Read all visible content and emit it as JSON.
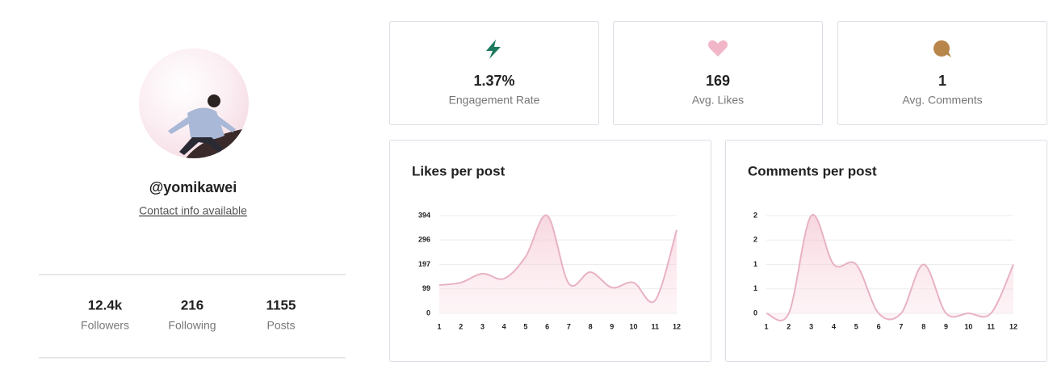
{
  "profile": {
    "username": "@yomikawei",
    "contact": "Contact info available",
    "stats": [
      {
        "value": "12.4k",
        "label": "Followers"
      },
      {
        "value": "216",
        "label": "Following"
      },
      {
        "value": "1155",
        "label": "Posts"
      }
    ]
  },
  "cards": [
    {
      "value": "1.37%",
      "label": "Engagement Rate"
    },
    {
      "value": "169",
      "label": "Avg. Likes"
    },
    {
      "value": "1",
      "label": "Avg. Comments"
    }
  ],
  "chart_data": [
    {
      "type": "line",
      "title": "Likes per post",
      "color": "#e8b2c3",
      "categories": [
        "1",
        "2",
        "3",
        "4",
        "5",
        "6",
        "7",
        "8",
        "9",
        "10",
        "11",
        "12"
      ],
      "values": [
        114,
        124,
        160,
        140,
        228,
        394,
        120,
        166,
        104,
        124,
        52,
        336
      ],
      "ylim": [
        0,
        394
      ],
      "yticks": [
        0,
        99,
        197,
        296,
        394
      ],
      "grid": true
    },
    {
      "type": "line",
      "title": "Comments per post",
      "color": "#e8b2c3",
      "categories": [
        "1",
        "2",
        "3",
        "4",
        "5",
        "6",
        "7",
        "8",
        "9",
        "10",
        "11",
        "12"
      ],
      "values": [
        0,
        0,
        2,
        1,
        1,
        0,
        0,
        1,
        0,
        0,
        0,
        1
      ],
      "ylim": [
        0,
        2
      ],
      "yticks": [
        0,
        {
          "value": 0.5,
          "label": "1"
        },
        1,
        {
          "value": 1.5,
          "label": "2"
        },
        2
      ],
      "grid": true
    }
  ]
}
